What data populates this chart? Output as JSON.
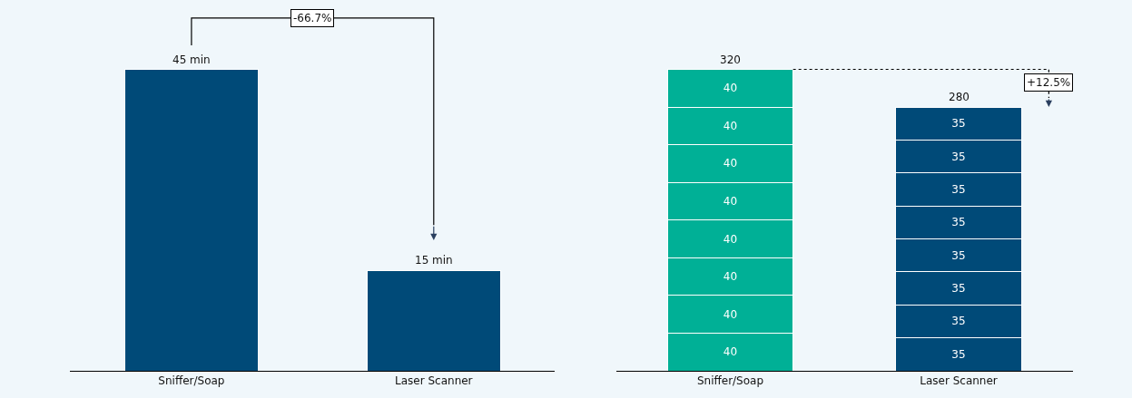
{
  "chart_data": [
    {
      "type": "bar",
      "categories": [
        "Sniffer/Soap",
        "Laser Scanner"
      ],
      "values": [
        45,
        15
      ],
      "color": "#004a78",
      "value_labels": [
        "45 min",
        "15 min"
      ],
      "annotations": [
        "-66.7%"
      ],
      "tick_labels": "x"
    },
    {
      "type": "bar",
      "categories": [
        "Sniffer/Soap",
        "Laser Scanner"
      ],
      "stacked": true,
      "data_labels": true,
      "tick_labels": "x",
      "totals": [
        "320",
        "280"
      ],
      "annotations": [
        "+12.5%"
      ],
      "series": [
        {
          "colors": [
            "#00b096",
            "#004a78"
          ],
          "values": [
            40,
            35
          ]
        },
        {
          "colors": [
            "#00b096",
            "#004a78"
          ],
          "values": [
            40,
            35
          ]
        },
        {
          "colors": [
            "#00b096",
            "#004a78"
          ],
          "values": [
            40,
            35
          ]
        },
        {
          "colors": [
            "#00b096",
            "#004a78"
          ],
          "values": [
            40,
            35
          ]
        },
        {
          "colors": [
            "#00b096",
            "#004a78"
          ],
          "values": [
            40,
            35
          ]
        },
        {
          "colors": [
            "#00b096",
            "#004a78"
          ],
          "values": [
            40,
            35
          ]
        },
        {
          "colors": [
            "#00b096",
            "#004a78"
          ],
          "values": [
            40,
            35
          ]
        },
        {
          "colors": [
            "#00b096",
            "#004a78"
          ],
          "values": [
            40,
            35
          ]
        }
      ]
    }
  ]
}
